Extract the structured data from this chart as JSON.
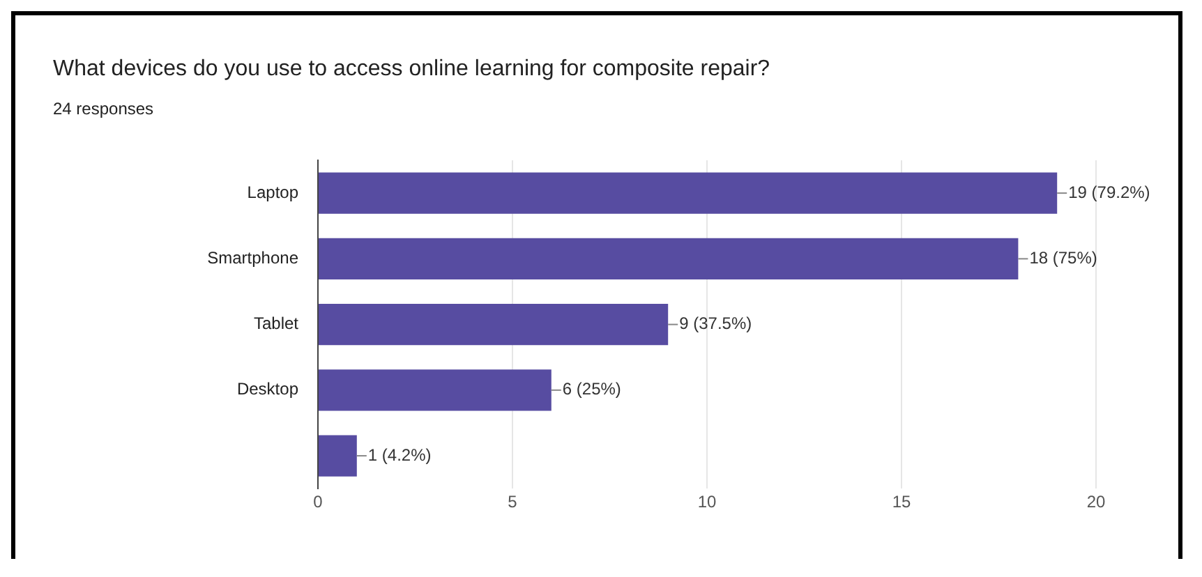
{
  "chart_data": {
    "type": "bar",
    "orientation": "horizontal",
    "title": "What devices do you use to access online learning for composite repair?",
    "subtitle": "24 responses",
    "categories": [
      "Laptop",
      "Smartphone",
      "Tablet",
      "Desktop",
      null
    ],
    "values": [
      19,
      18,
      9,
      6,
      1
    ],
    "value_labels": [
      "19 (79.2%)",
      "18 (75%)",
      "9 (37.5%)",
      "6 (25%)",
      "1 (4.2%)"
    ],
    "color": "#574ca1",
    "xlim": [
      0,
      20
    ],
    "xticks": [
      0,
      5,
      10,
      15,
      20
    ],
    "grid": "x"
  }
}
